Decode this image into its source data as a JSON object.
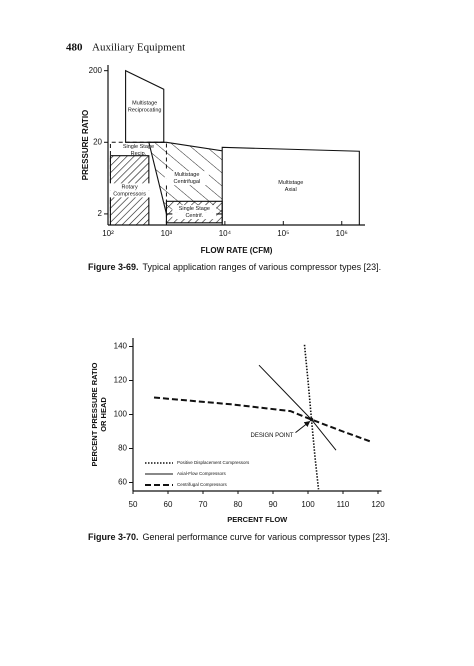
{
  "header": {
    "page_number": "480",
    "section": "Auxiliary Equipment"
  },
  "chart_data": [
    {
      "type": "region",
      "xlabel": "FLOW RATE (CFM)",
      "ylabel": "PRESSURE RATIO",
      "x_scale": "log",
      "y_scale": "log",
      "xlim": [
        100,
        2500000
      ],
      "ylim": [
        1.4,
        240
      ],
      "xticks": [
        {
          "value": 100,
          "label": "10²"
        },
        {
          "value": 1000,
          "label": "10³"
        },
        {
          "value": 10000,
          "label": "10⁴"
        },
        {
          "value": 100000,
          "label": "10⁵"
        },
        {
          "value": 1000000,
          "label": "10⁶"
        }
      ],
      "yticks": [
        2,
        20,
        200
      ],
      "caption": {
        "label": "Figure 3-69.",
        "text": "Typical application ranges of various compressor types [23]."
      },
      "regions": [
        {
          "label": [
            "Multistage",
            "Reciprocating"
          ],
          "pattern": "none",
          "line": "solid",
          "x": [
            200,
            200,
            900,
            900
          ],
          "y": [
            20,
            200,
            110,
            20
          ]
        },
        {
          "label": [
            "Multistage",
            "Centrifugal"
          ],
          "pattern": "sparse",
          "line": "solid",
          "x": [
            500,
            1000,
            10000,
            10000,
            1000
          ],
          "y": [
            20,
            20,
            15,
            2,
            2
          ]
        },
        {
          "label": [
            "Multistage",
            "Axial"
          ],
          "pattern": "none",
          "line": "solid",
          "x": [
            9000,
            9000,
            2000000,
            2000000
          ],
          "y": [
            1.4,
            17,
            15,
            1.4
          ]
        },
        {
          "label": [
            "Rotary",
            "Compressors"
          ],
          "pattern": "dense",
          "line": "solid",
          "x": [
            110,
            110,
            500,
            500
          ],
          "y": [
            1.4,
            13,
            13,
            1.4
          ]
        },
        {
          "label": [
            "Single Stage",
            "Centrif."
          ],
          "pattern": "dense",
          "line": "solid",
          "x": [
            1000,
            1000,
            9000,
            9000
          ],
          "y": [
            1.5,
            3,
            3,
            1.5
          ]
        },
        {
          "label": [
            "Single Stage",
            "Recip."
          ],
          "pattern": "none",
          "line": "dashed",
          "x": [
            110,
            110,
            1000,
            1000
          ],
          "y": [
            1.4,
            20,
            20,
            1.4
          ]
        }
      ]
    },
    {
      "type": "line",
      "xlabel": "PERCENT FLOW",
      "ylabel": [
        "PERCENT PRESSURE RATIO",
        "OR HEAD"
      ],
      "xlim": [
        50,
        121
      ],
      "ylim": [
        55,
        145
      ],
      "xticks": [
        50,
        60,
        70,
        80,
        90,
        100,
        110,
        120
      ],
      "yticks": [
        60,
        80,
        100,
        120,
        140
      ],
      "caption": {
        "label": "Figure 3-70.",
        "text": "General performance curve for various compressor types [23]."
      },
      "annotation": {
        "text": "DESIGN POINT",
        "x": 101,
        "y": 97
      },
      "series": [
        {
          "name": "Positive Displacement Compressors",
          "dash": "dotted",
          "color": "#111111",
          "x": [
            99,
            100,
            101,
            102,
            103
          ],
          "values": [
            141,
            120,
            97,
            75,
            56
          ]
        },
        {
          "name": "Axial-Flow Compressors",
          "dash": "solid",
          "color": "#111111",
          "x": [
            86,
            101,
            108
          ],
          "values": [
            129,
            97,
            79
          ]
        },
        {
          "name": "Centrifugal Compressors",
          "dash": "dashed",
          "color": "#111111",
          "x": [
            56,
            78,
            95,
            101,
            110,
            118
          ],
          "values": [
            110,
            106,
            102,
            97,
            90,
            84
          ]
        }
      ]
    }
  ]
}
